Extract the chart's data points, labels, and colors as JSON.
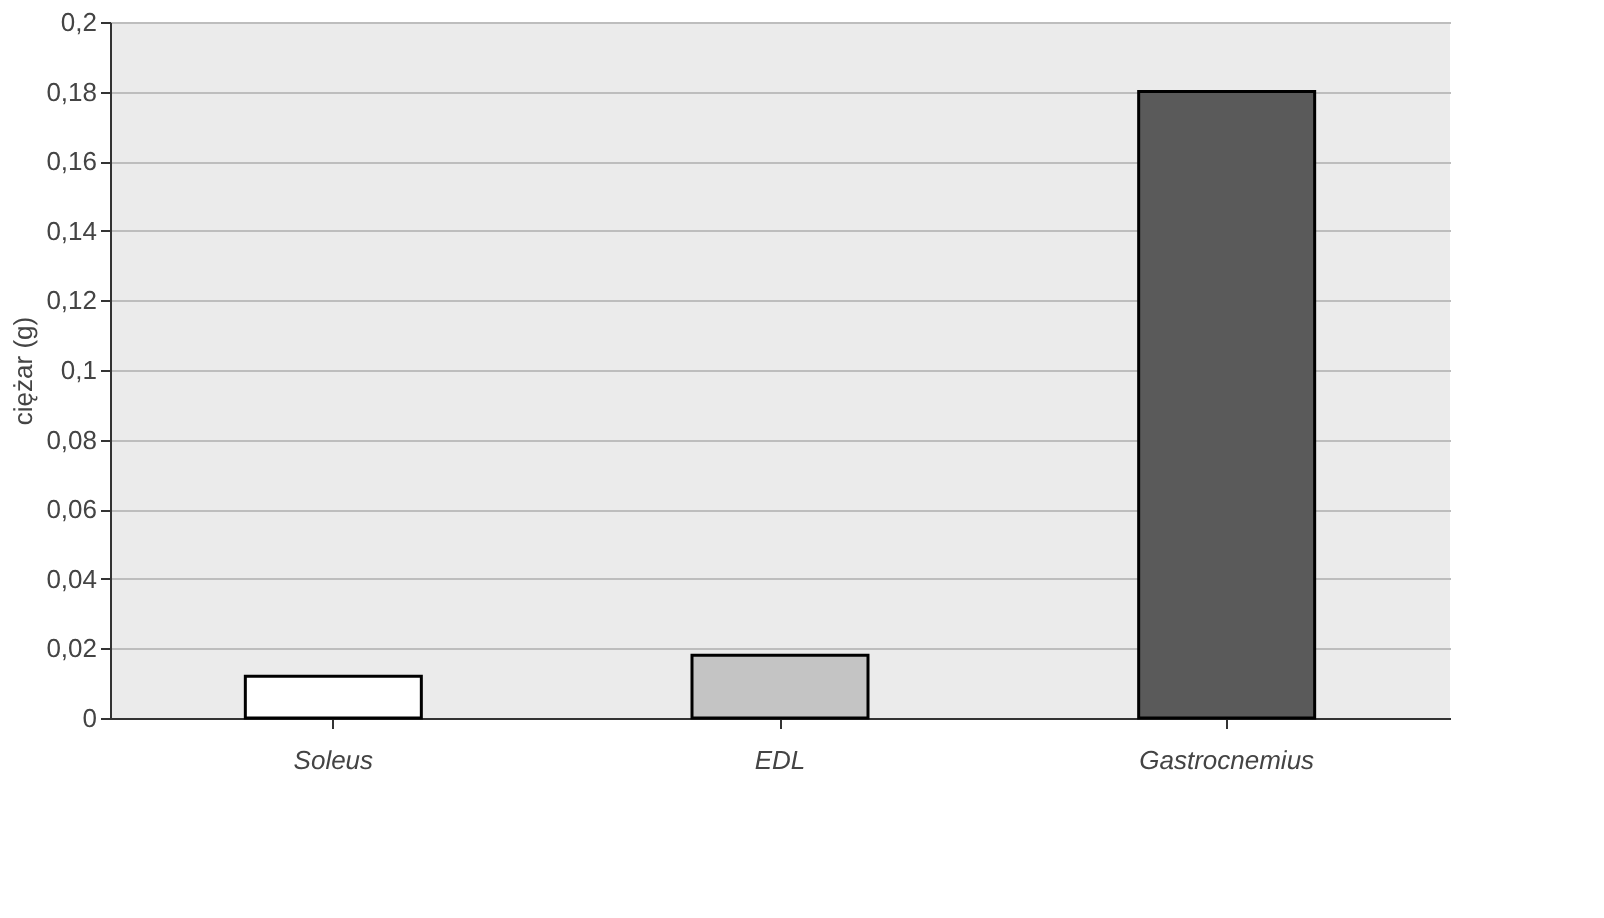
{
  "chart_data": {
    "type": "bar",
    "ylabel": "ciężar (g)",
    "categories": [
      "Soleus",
      "EDL",
      "Gastrocnemius"
    ],
    "values": [
      0.012,
      0.018,
      0.18
    ],
    "colors": [
      "#ffffff",
      "#c4c4c4",
      "#5a5a5a"
    ],
    "ylim": [
      0,
      0.2
    ],
    "yticks": [
      0,
      {
        "value": 0.02,
        "label": "0,02"
      },
      {
        "value": 0.04,
        "label": "0,04"
      },
      {
        "value": 0.06,
        "label": "0,06"
      },
      {
        "value": 0.08,
        "label": "0,08"
      },
      {
        "value": 0.1,
        "label": "0,1"
      },
      {
        "value": 0.12,
        "label": "0,12"
      },
      {
        "value": 0.14,
        "label": "0,14"
      },
      {
        "value": 0.16,
        "label": "0,16"
      },
      {
        "value": 0.18,
        "label": "0,18"
      },
      {
        "value": 0.2,
        "label": "0,2"
      }
    ],
    "grid": "y"
  }
}
